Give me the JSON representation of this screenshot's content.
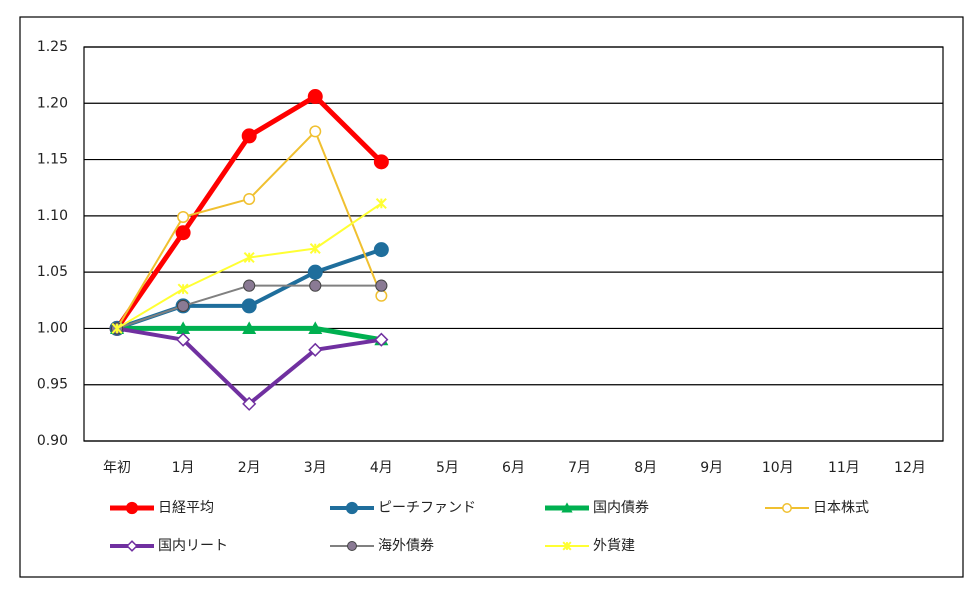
{
  "chart_data": {
    "type": "line",
    "categories": [
      "年初",
      "1月",
      "2月",
      "3月",
      "4月",
      "5月",
      "6月",
      "7月",
      "8月",
      "9月",
      "10月",
      "11月",
      "12月"
    ],
    "series": [
      {
        "name": "日経平均",
        "color": "#ff0000",
        "marker": "circle",
        "values": [
          1.0,
          1.085,
          1.171,
          1.206,
          1.148,
          null,
          null,
          null,
          null,
          null,
          null,
          null,
          null
        ]
      },
      {
        "name": "ピーチファンド",
        "color": "#1f6e9c",
        "marker": "circle",
        "values": [
          1.0,
          1.02,
          1.02,
          1.05,
          1.07,
          null,
          null,
          null,
          null,
          null,
          null,
          null,
          null
        ]
      },
      {
        "name": "国内債券",
        "color": "#00b050",
        "marker": "triangle",
        "values": [
          1.0,
          1.0,
          1.0,
          1.0,
          0.99,
          null,
          null,
          null,
          null,
          null,
          null,
          null,
          null
        ]
      },
      {
        "name": "日本株式",
        "color": "#f0c030",
        "marker": "hollow-circle",
        "values": [
          1.0,
          1.099,
          1.115,
          1.175,
          1.029,
          null,
          null,
          null,
          null,
          null,
          null,
          null,
          null
        ]
      },
      {
        "name": "国内リート",
        "color": "#7030a0",
        "marker": "hollow-diamond",
        "values": [
          1.0,
          0.99,
          0.933,
          0.981,
          0.99,
          null,
          null,
          null,
          null,
          null,
          null,
          null,
          null
        ]
      },
      {
        "name": "海外債券",
        "color": "#808080",
        "marker": "gray-circle",
        "values": [
          1.0,
          1.02,
          1.038,
          1.038,
          1.038,
          null,
          null,
          null,
          null,
          null,
          null,
          null,
          null
        ]
      },
      {
        "name": "外貨建",
        "color": "#ffff33",
        "marker": "star",
        "values": [
          1.0,
          1.035,
          1.063,
          1.071,
          1.111,
          null,
          null,
          null,
          null,
          null,
          null,
          null,
          null
        ]
      }
    ],
    "ylim": [
      0.9,
      1.25
    ],
    "yticks": [
      {
        "value": 0.9,
        "label": "0.90"
      },
      {
        "value": 0.95,
        "label": "0.95"
      },
      {
        "value": 1.0,
        "label": "1.00"
      },
      {
        "value": 1.05,
        "label": "1.05"
      },
      {
        "value": 1.1,
        "label": "1.10"
      },
      {
        "value": 1.15,
        "label": "1.15"
      },
      {
        "value": 1.2,
        "label": "1.20"
      },
      {
        "value": 1.25,
        "label": "1.25"
      }
    ],
    "grid": true,
    "legend": "bottom"
  }
}
